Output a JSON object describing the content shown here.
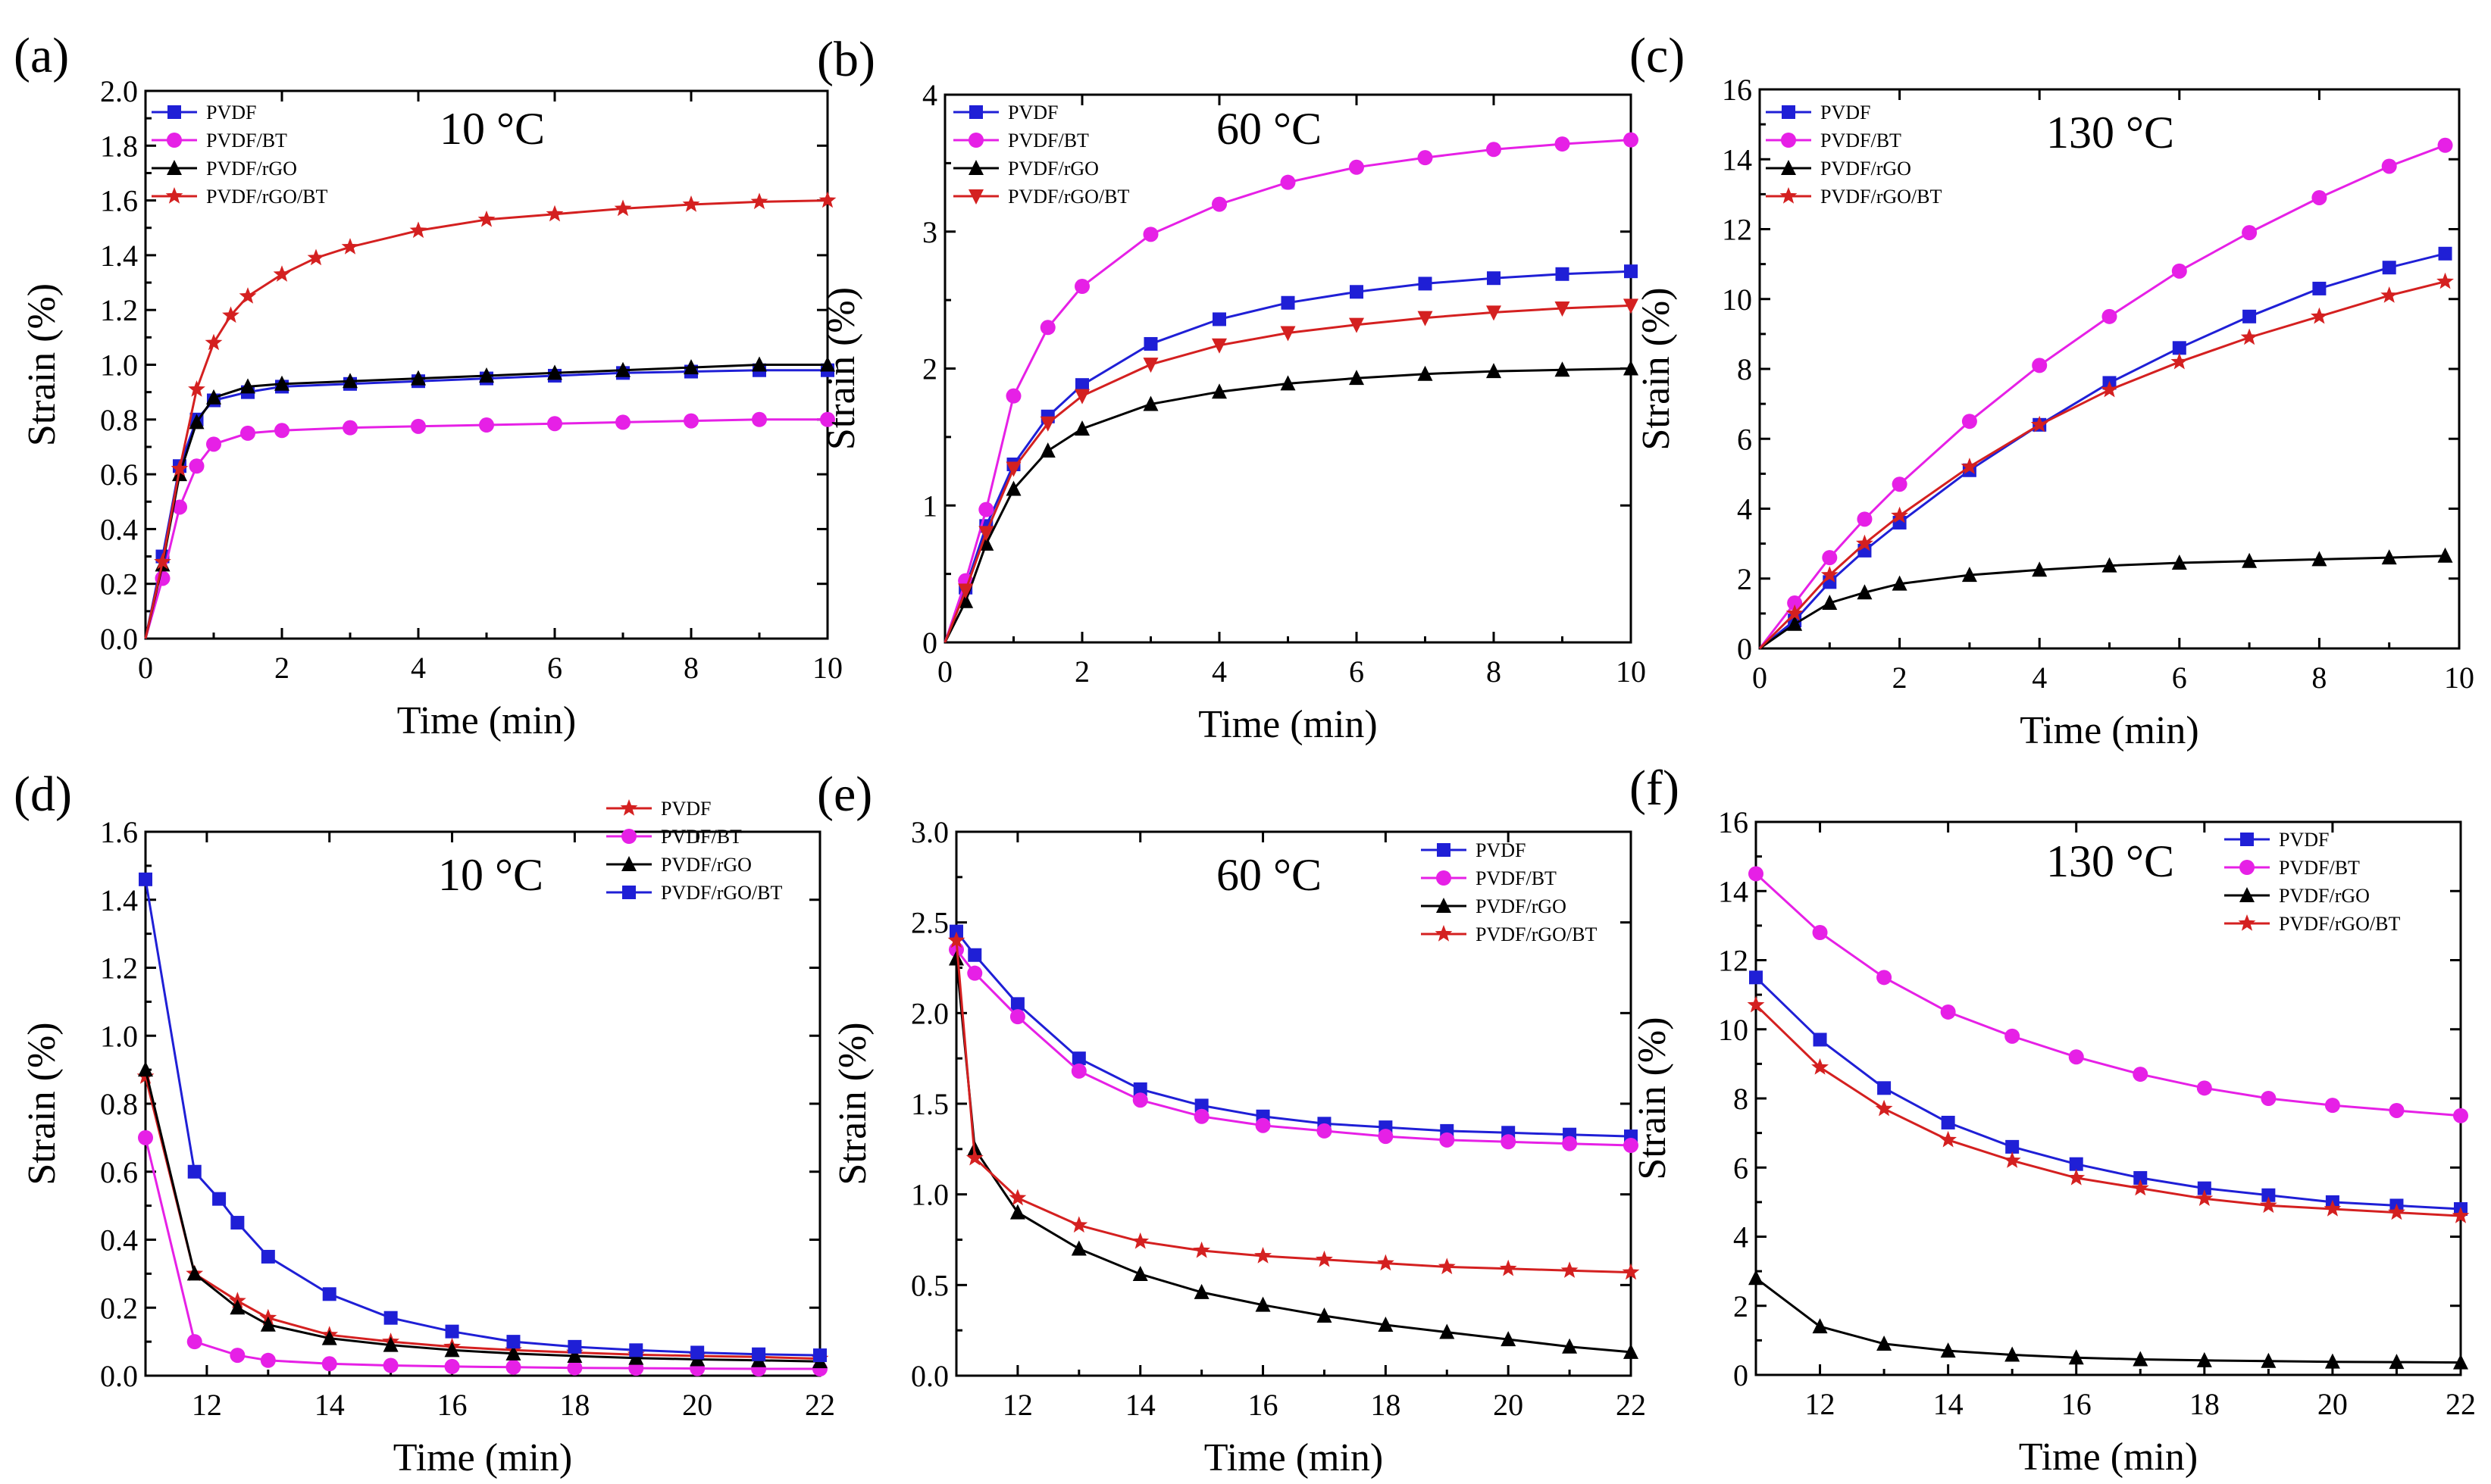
{
  "colors": {
    "blue": "#1f1fd6",
    "magenta": "#e620e6",
    "black": "#000000",
    "red": "#d42020"
  },
  "panels": [
    {
      "id": "a",
      "label": "(a)",
      "temp": "10 °C",
      "xlabel": "Time (min)",
      "ylabel": "Strain (%)",
      "xlim": [
        0,
        10
      ],
      "ylim": [
        0,
        2.0
      ],
      "xticks": [
        "0",
        "2",
        "4",
        "6",
        "8",
        "10"
      ],
      "yticks": [
        "0.0",
        "0.2",
        "0.4",
        "0.6",
        "0.8",
        "1.0",
        "1.2",
        "1.4",
        "1.6",
        "1.8",
        "2.0"
      ],
      "legend_pos": "top-left",
      "series": [
        {
          "name": "PVDF",
          "color": "blue",
          "marker": "square",
          "x": [
            0,
            0.25,
            0.5,
            0.75,
            1,
            1.5,
            2,
            3,
            4,
            5,
            6,
            7,
            8,
            9,
            10
          ],
          "y": [
            0,
            0.3,
            0.63,
            0.8,
            0.87,
            0.9,
            0.92,
            0.93,
            0.94,
            0.95,
            0.96,
            0.97,
            0.975,
            0.98,
            0.98
          ]
        },
        {
          "name": "PVDF/BT",
          "color": "magenta",
          "marker": "circle",
          "x": [
            0,
            0.25,
            0.5,
            0.75,
            1,
            1.5,
            2,
            3,
            4,
            5,
            6,
            7,
            8,
            9,
            10
          ],
          "y": [
            0,
            0.22,
            0.48,
            0.63,
            0.71,
            0.75,
            0.76,
            0.77,
            0.775,
            0.78,
            0.785,
            0.79,
            0.795,
            0.8,
            0.8
          ]
        },
        {
          "name": "PVDF/rGO",
          "color": "black",
          "marker": "triangle",
          "x": [
            0,
            0.25,
            0.5,
            0.75,
            1,
            1.5,
            2,
            3,
            4,
            5,
            6,
            7,
            8,
            9,
            10
          ],
          "y": [
            0,
            0.27,
            0.6,
            0.79,
            0.88,
            0.92,
            0.93,
            0.94,
            0.95,
            0.96,
            0.97,
            0.98,
            0.99,
            1.0,
            1.0
          ]
        },
        {
          "name": "PVDF/rGO/BT",
          "color": "red",
          "marker": "star",
          "x": [
            0,
            0.25,
            0.5,
            0.75,
            1,
            1.25,
            1.5,
            2,
            2.5,
            3,
            4,
            5,
            6,
            7,
            8,
            9,
            10
          ],
          "y": [
            0,
            0.28,
            0.62,
            0.91,
            1.08,
            1.18,
            1.25,
            1.33,
            1.39,
            1.43,
            1.49,
            1.53,
            1.55,
            1.57,
            1.585,
            1.595,
            1.6
          ]
        }
      ]
    },
    {
      "id": "b",
      "label": "(b)",
      "temp": "60 °C",
      "xlabel": "Time (min)",
      "ylabel": "Strain (%)",
      "xlim": [
        0,
        10
      ],
      "ylim": [
        0,
        4
      ],
      "xticks": [
        "0",
        "2",
        "4",
        "6",
        "8",
        "10"
      ],
      "yticks": [
        "0",
        "1",
        "2",
        "3",
        "4"
      ],
      "legend_pos": "top-left",
      "series": [
        {
          "name": "PVDF",
          "color": "blue",
          "marker": "square",
          "x": [
            0,
            0.3,
            0.6,
            1,
            1.5,
            2,
            3,
            4,
            5,
            6,
            7,
            8,
            9,
            10
          ],
          "y": [
            0,
            0.4,
            0.85,
            1.3,
            1.65,
            1.88,
            2.18,
            2.36,
            2.48,
            2.56,
            2.62,
            2.66,
            2.69,
            2.71
          ]
        },
        {
          "name": "PVDF/BT",
          "color": "magenta",
          "marker": "circle",
          "x": [
            0,
            0.3,
            0.6,
            1,
            1.5,
            2,
            3,
            4,
            5,
            6,
            7,
            8,
            9,
            10
          ],
          "y": [
            0,
            0.45,
            0.97,
            1.8,
            2.3,
            2.6,
            2.98,
            3.2,
            3.36,
            3.47,
            3.54,
            3.6,
            3.64,
            3.67
          ]
        },
        {
          "name": "PVDF/rGO",
          "color": "black",
          "marker": "triangle",
          "x": [
            0,
            0.3,
            0.6,
            1,
            1.5,
            2,
            3,
            4,
            5,
            6,
            7,
            8,
            9,
            10
          ],
          "y": [
            0,
            0.3,
            0.72,
            1.12,
            1.4,
            1.56,
            1.74,
            1.83,
            1.89,
            1.93,
            1.96,
            1.98,
            1.99,
            2.0
          ]
        },
        {
          "name": "PVDF/rGO/BT",
          "color": "red",
          "marker": "triangle-down",
          "x": [
            0,
            0.3,
            0.6,
            1,
            1.5,
            2,
            3,
            4,
            5,
            6,
            7,
            8,
            9,
            10
          ],
          "y": [
            0,
            0.38,
            0.8,
            1.27,
            1.6,
            1.8,
            2.03,
            2.17,
            2.26,
            2.32,
            2.37,
            2.41,
            2.44,
            2.46
          ]
        }
      ]
    },
    {
      "id": "c",
      "label": "(c)",
      "temp": "130 °C",
      "xlabel": "Time (min)",
      "ylabel": "Strain (%)",
      "xlim": [
        0,
        10
      ],
      "ylim": [
        0,
        16
      ],
      "xticks": [
        "0",
        "2",
        "4",
        "6",
        "8",
        "10"
      ],
      "yticks": [
        "0",
        "2",
        "4",
        "6",
        "8",
        "10",
        "12",
        "14",
        "16"
      ],
      "legend_pos": "top-left",
      "series": [
        {
          "name": "PVDF",
          "color": "blue",
          "marker": "square",
          "x": [
            0,
            0.5,
            1,
            1.5,
            2,
            3,
            4,
            5,
            6,
            7,
            8,
            9,
            9.8
          ],
          "y": [
            0,
            0.8,
            1.9,
            2.8,
            3.6,
            5.1,
            6.4,
            7.6,
            8.6,
            9.5,
            10.3,
            10.9,
            11.3
          ]
        },
        {
          "name": "PVDF/BT",
          "color": "magenta",
          "marker": "circle",
          "x": [
            0,
            0.5,
            1,
            1.5,
            2,
            3,
            4,
            5,
            6,
            7,
            8,
            9,
            9.8
          ],
          "y": [
            0,
            1.3,
            2.6,
            3.7,
            4.7,
            6.5,
            8.1,
            9.5,
            10.8,
            11.9,
            12.9,
            13.8,
            14.4
          ]
        },
        {
          "name": "PVDF/rGO",
          "color": "black",
          "marker": "triangle",
          "x": [
            0,
            0.5,
            1,
            1.5,
            2,
            3,
            4,
            5,
            6,
            7,
            8,
            9,
            9.8
          ],
          "y": [
            0,
            0.7,
            1.3,
            1.6,
            1.85,
            2.1,
            2.25,
            2.37,
            2.45,
            2.5,
            2.55,
            2.6,
            2.65
          ]
        },
        {
          "name": "PVDF/rGO/BT",
          "color": "red",
          "marker": "star",
          "x": [
            0,
            0.5,
            1,
            1.5,
            2,
            3,
            4,
            5,
            6,
            7,
            8,
            9,
            9.8
          ],
          "y": [
            0,
            1.0,
            2.1,
            3.0,
            3.8,
            5.2,
            6.4,
            7.4,
            8.2,
            8.9,
            9.5,
            10.1,
            10.5
          ]
        }
      ]
    },
    {
      "id": "d",
      "label": "(d)",
      "temp": "10 °C",
      "xlabel": "Time (min)",
      "ylabel": "Strain (%)",
      "xlim": [
        11,
        22
      ],
      "ylim": [
        0,
        1.6
      ],
      "xticks": [
        "12",
        "14",
        "16",
        "18",
        "20",
        "22"
      ],
      "yticks": [
        "0.0",
        "0.2",
        "0.4",
        "0.6",
        "0.8",
        "1.0",
        "1.2",
        "1.4",
        "1.6"
      ],
      "legend_pos": "top-right",
      "series": [
        {
          "name": "PVDF",
          "color": "red",
          "marker": "star",
          "x": [
            11,
            11.8,
            12.5,
            13,
            14,
            15,
            16,
            17,
            18,
            19,
            20,
            21,
            22
          ],
          "y": [
            0.88,
            0.3,
            0.22,
            0.17,
            0.12,
            0.1,
            0.085,
            0.075,
            0.068,
            0.062,
            0.058,
            0.055,
            0.05
          ]
        },
        {
          "name": "PVDF/BT",
          "color": "magenta",
          "marker": "circle",
          "x": [
            11,
            11.8,
            12.5,
            13,
            14,
            15,
            16,
            17,
            18,
            19,
            20,
            21,
            22
          ],
          "y": [
            0.7,
            0.1,
            0.06,
            0.045,
            0.035,
            0.03,
            0.027,
            0.025,
            0.023,
            0.022,
            0.021,
            0.02,
            0.02
          ]
        },
        {
          "name": "PVDF/rGO",
          "color": "black",
          "marker": "triangle",
          "x": [
            11,
            11.8,
            12.5,
            13,
            14,
            15,
            16,
            17,
            18,
            19,
            20,
            21,
            22
          ],
          "y": [
            0.9,
            0.3,
            0.2,
            0.15,
            0.11,
            0.09,
            0.075,
            0.065,
            0.058,
            0.052,
            0.048,
            0.045,
            0.042
          ]
        },
        {
          "name": "PVDF/rGO/BT",
          "color": "blue",
          "marker": "square",
          "x": [
            11,
            11.8,
            12.2,
            12.5,
            13,
            14,
            15,
            16,
            17,
            18,
            19,
            20,
            21,
            22
          ],
          "y": [
            1.46,
            0.6,
            0.52,
            0.45,
            0.35,
            0.24,
            0.17,
            0.13,
            0.1,
            0.085,
            0.075,
            0.068,
            0.063,
            0.06
          ]
        }
      ]
    },
    {
      "id": "e",
      "label": "(e)",
      "temp": "60 °C",
      "xlabel": "Time (min)",
      "ylabel": "Strain (%)",
      "xlim": [
        11,
        22
      ],
      "ylim": [
        0,
        3.0
      ],
      "xticks": [
        "12",
        "14",
        "16",
        "18",
        "20",
        "22"
      ],
      "yticks": [
        "0.0",
        "0.5",
        "1.0",
        "1.5",
        "2.0",
        "2.5",
        "3.0"
      ],
      "legend_pos": "top-right",
      "series": [
        {
          "name": "PVDF",
          "color": "blue",
          "marker": "square",
          "x": [
            11,
            11.3,
            12,
            13,
            14,
            15,
            16,
            17,
            18,
            19,
            20,
            21,
            22
          ],
          "y": [
            2.45,
            2.32,
            2.05,
            1.75,
            1.58,
            1.49,
            1.43,
            1.39,
            1.37,
            1.35,
            1.34,
            1.33,
            1.32
          ]
        },
        {
          "name": "PVDF/BT",
          "color": "magenta",
          "marker": "circle",
          "x": [
            11,
            11.3,
            12,
            13,
            14,
            15,
            16,
            17,
            18,
            19,
            20,
            21,
            22
          ],
          "y": [
            2.35,
            2.22,
            1.98,
            1.68,
            1.52,
            1.43,
            1.38,
            1.35,
            1.32,
            1.3,
            1.29,
            1.28,
            1.27
          ]
        },
        {
          "name": "PVDF/rGO",
          "color": "black",
          "marker": "triangle",
          "x": [
            11,
            11.3,
            12,
            13,
            14,
            15,
            16,
            17,
            18,
            19,
            20,
            21,
            22
          ],
          "y": [
            2.3,
            1.25,
            0.9,
            0.7,
            0.56,
            0.46,
            0.39,
            0.33,
            0.28,
            0.24,
            0.2,
            0.16,
            0.13
          ]
        },
        {
          "name": "PVDF/rGO/BT",
          "color": "red",
          "marker": "star",
          "x": [
            11,
            11.3,
            12,
            13,
            14,
            15,
            16,
            17,
            18,
            19,
            20,
            21,
            22
          ],
          "y": [
            2.4,
            1.2,
            0.98,
            0.83,
            0.74,
            0.69,
            0.66,
            0.64,
            0.62,
            0.6,
            0.59,
            0.58,
            0.57
          ]
        }
      ]
    },
    {
      "id": "f",
      "label": "(f)",
      "temp": "130 °C",
      "xlabel": "Time (min)",
      "ylabel": "Strain (%)",
      "xlim": [
        11,
        22
      ],
      "ylim": [
        0,
        16
      ],
      "xticks": [
        "12",
        "14",
        "16",
        "18",
        "20",
        "22"
      ],
      "yticks": [
        "0",
        "2",
        "4",
        "6",
        "8",
        "10",
        "12",
        "14",
        "16"
      ],
      "legend_pos": "top-right",
      "series": [
        {
          "name": "PVDF",
          "color": "blue",
          "marker": "square",
          "x": [
            11,
            12,
            13,
            14,
            15,
            16,
            17,
            18,
            19,
            20,
            21,
            22
          ],
          "y": [
            11.5,
            9.7,
            8.3,
            7.3,
            6.6,
            6.1,
            5.7,
            5.4,
            5.2,
            5.0,
            4.9,
            4.8
          ]
        },
        {
          "name": "PVDF/BT",
          "color": "magenta",
          "marker": "circle",
          "x": [
            11,
            12,
            13,
            14,
            15,
            16,
            17,
            18,
            19,
            20,
            21,
            22
          ],
          "y": [
            14.5,
            12.8,
            11.5,
            10.5,
            9.8,
            9.2,
            8.7,
            8.3,
            8.0,
            7.8,
            7.65,
            7.5
          ]
        },
        {
          "name": "PVDF/rGO",
          "color": "black",
          "marker": "triangle",
          "x": [
            11,
            12,
            13,
            14,
            15,
            16,
            17,
            18,
            19,
            20,
            21,
            22
          ],
          "y": [
            2.8,
            1.4,
            0.9,
            0.7,
            0.58,
            0.5,
            0.45,
            0.42,
            0.4,
            0.38,
            0.37,
            0.36
          ]
        },
        {
          "name": "PVDF/rGO/BT",
          "color": "red",
          "marker": "star",
          "x": [
            11,
            12,
            13,
            14,
            15,
            16,
            17,
            18,
            19,
            20,
            21,
            22
          ],
          "y": [
            10.7,
            8.9,
            7.7,
            6.8,
            6.2,
            5.7,
            5.4,
            5.1,
            4.9,
            4.8,
            4.7,
            4.6
          ]
        }
      ]
    }
  ],
  "chart_data": [
    {
      "type": "line",
      "panel": "(a)",
      "title": "10 °C",
      "xlabel": "Time (min)",
      "ylabel": "Strain (%)",
      "xlim": [
        0,
        10
      ],
      "ylim": [
        0,
        2.0
      ]
    },
    {
      "type": "line",
      "panel": "(b)",
      "title": "60 °C",
      "xlabel": "Time (min)",
      "ylabel": "Strain (%)",
      "xlim": [
        0,
        10
      ],
      "ylim": [
        0,
        4
      ]
    },
    {
      "type": "line",
      "panel": "(c)",
      "title": "130 °C",
      "xlabel": "Time (min)",
      "ylabel": "Strain (%)",
      "xlim": [
        0,
        10
      ],
      "ylim": [
        0,
        16
      ]
    },
    {
      "type": "line",
      "panel": "(d)",
      "title": "10 °C",
      "xlabel": "Time (min)",
      "ylabel": "Strain (%)",
      "xlim": [
        11,
        22
      ],
      "ylim": [
        0,
        1.6
      ]
    },
    {
      "type": "line",
      "panel": "(e)",
      "title": "60 °C",
      "xlabel": "Time (min)",
      "ylabel": "Strain (%)",
      "xlim": [
        11,
        22
      ],
      "ylim": [
        0,
        3.0
      ]
    },
    {
      "type": "line",
      "panel": "(f)",
      "title": "130 °C",
      "xlabel": "Time (min)",
      "ylabel": "Strain (%)",
      "xlim": [
        11,
        22
      ],
      "ylim": [
        0,
        16
      ]
    }
  ]
}
